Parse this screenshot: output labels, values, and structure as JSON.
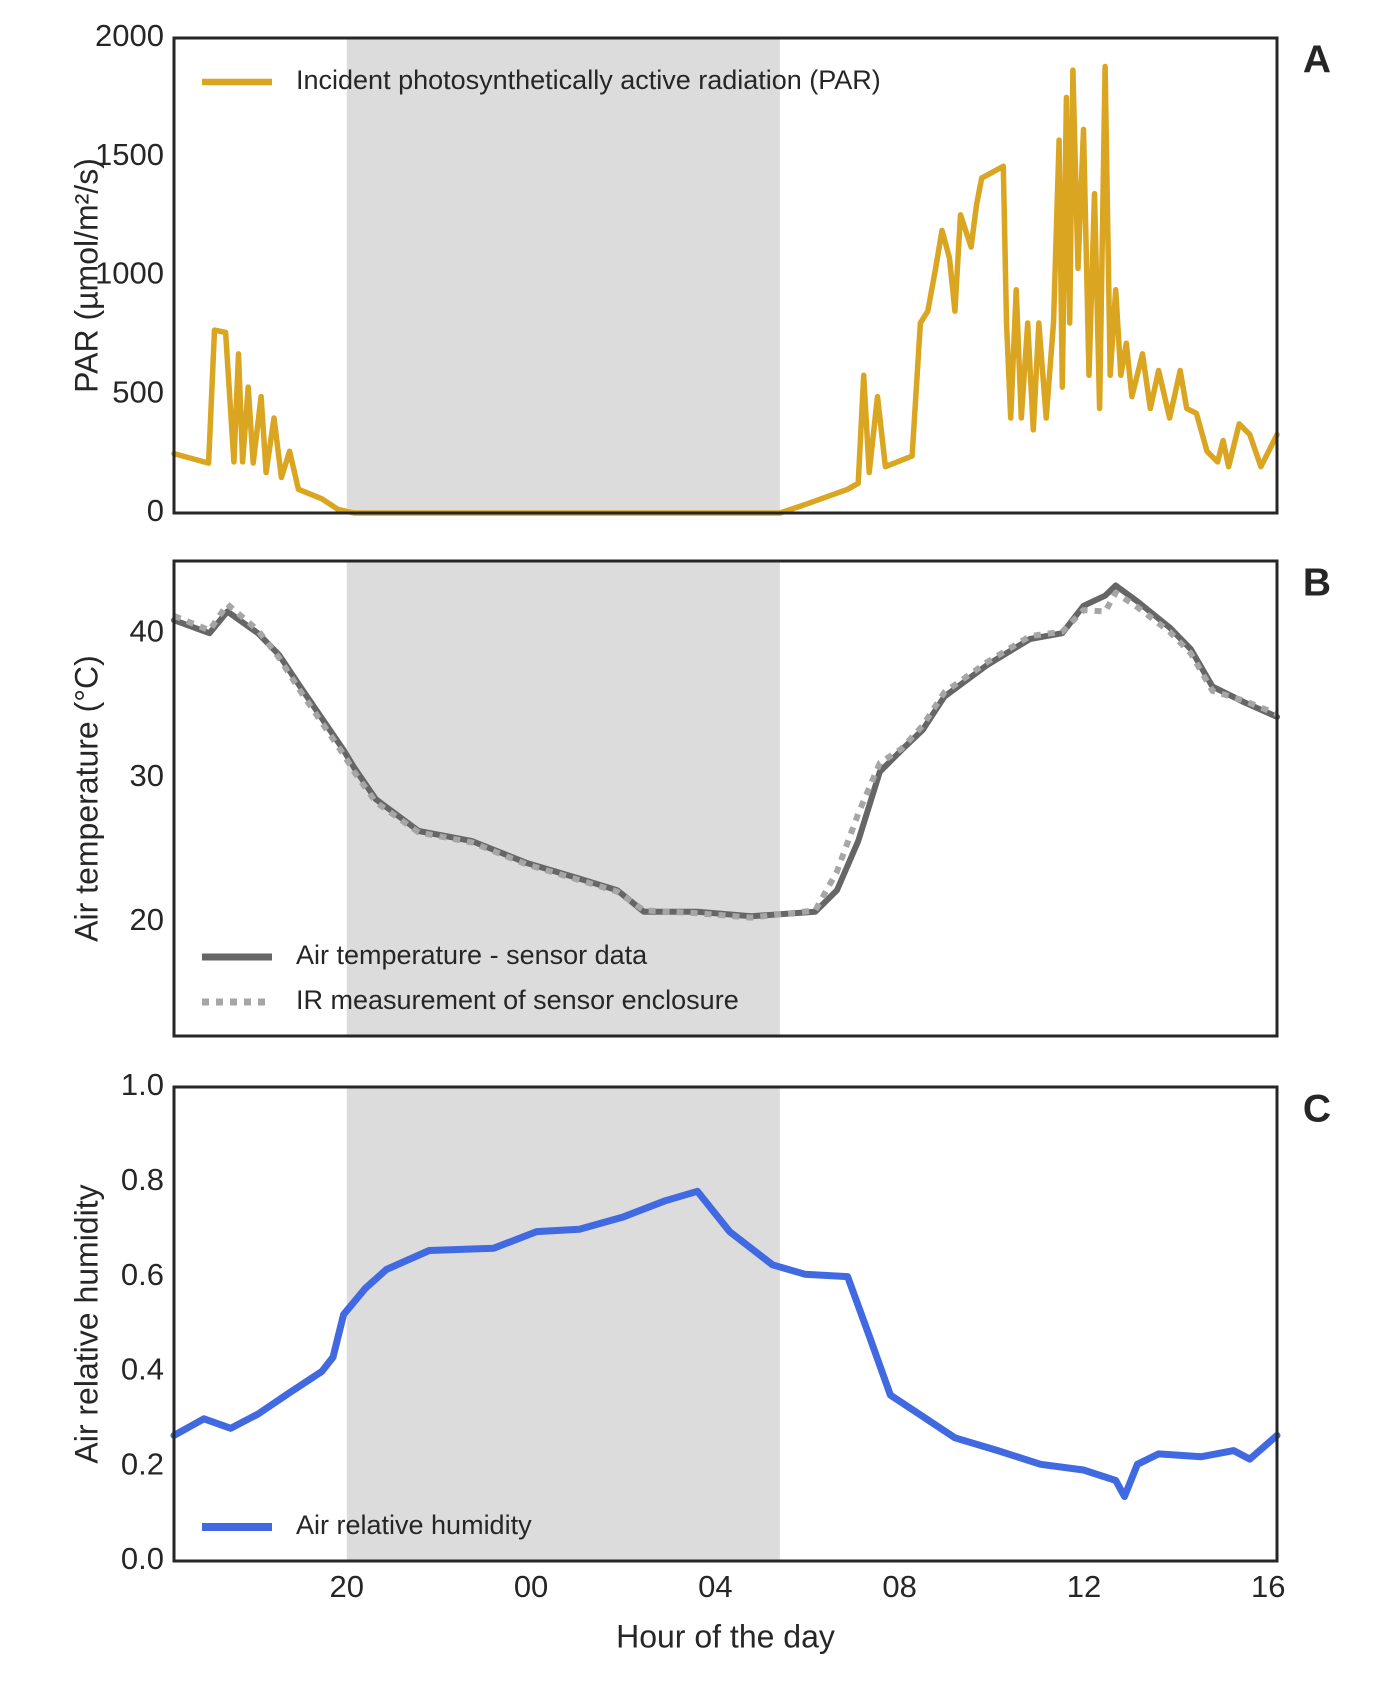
{
  "chart_data": [
    {
      "type": "line",
      "panel_label": "A",
      "ylabel": "PAR (µmol/m²/s)",
      "xlim": [
        16.25,
        40.19
      ],
      "ylim": [
        0,
        2000
      ],
      "yticks": [
        0,
        500,
        1000,
        1500,
        2000
      ],
      "shaded_span": [
        20,
        29.4
      ],
      "shade_color": "#dcdcdc",
      "legend": "upper left",
      "x": [
        16.25,
        17.0,
        17.13,
        17.37,
        17.55,
        17.65,
        17.74,
        17.86,
        17.97,
        18.14,
        18.25,
        18.42,
        18.58,
        18.76,
        18.95,
        19.46,
        19.81,
        20.16,
        29.4,
        29.94,
        30.87,
        31.1,
        31.22,
        31.34,
        31.52,
        31.69,
        32.27,
        32.45,
        32.61,
        32.78,
        32.92,
        33.08,
        33.2,
        33.32,
        33.55,
        33.67,
        33.78,
        34.25,
        34.32,
        34.41,
        34.53,
        34.64,
        34.78,
        34.9,
        35.02,
        35.18,
        35.34,
        35.46,
        35.53,
        35.62,
        35.69,
        35.76,
        35.87,
        35.99,
        36.11,
        36.23,
        36.34,
        36.46,
        36.57,
        36.69,
        36.8,
        36.92,
        37.04,
        37.27,
        37.44,
        37.62,
        37.86,
        38.09,
        38.23,
        38.44,
        38.67,
        38.9,
        39.02,
        39.14,
        39.37,
        39.6,
        39.84,
        40.19
      ],
      "series": [
        {
          "name": "Incident photosynthetically active radiation (PAR)",
          "color": "#daa520",
          "linestyle": "solid",
          "values": [
            250,
            210,
            770,
            760,
            215,
            670,
            215,
            530,
            210,
            490,
            170,
            400,
            150,
            260,
            100,
            60,
            15,
            0,
            0,
            35,
            100,
            125,
            580,
            170,
            490,
            195,
            240,
            800,
            850,
            1030,
            1190,
            1075,
            850,
            1255,
            1120,
            1300,
            1410,
            1460,
            800,
            400,
            940,
            400,
            800,
            350,
            800,
            400,
            800,
            1570,
            530,
            1750,
            800,
            1865,
            1030,
            1615,
            580,
            1345,
            440,
            1880,
            580,
            940,
            580,
            715,
            490,
            670,
            440,
            600,
            400,
            600,
            440,
            420,
            260,
            215,
            305,
            195,
            375,
            330,
            195,
            330
          ]
        }
      ]
    },
    {
      "type": "line",
      "panel_label": "B",
      "ylabel": "Air temperature (°C)",
      "xlim": [
        16.25,
        40.19
      ],
      "ylim": [
        12.1,
        45
      ],
      "yticks": [
        20,
        30,
        40
      ],
      "shaded_span": [
        20,
        29.4
      ],
      "shade_color": "#dcdcdc",
      "legend": "lower left",
      "x": [
        16.25,
        17.02,
        17.41,
        18.07,
        18.53,
        18.99,
        19.93,
        20.16,
        20.63,
        21.56,
        22.72,
        23.89,
        25.05,
        25.87,
        26.45,
        27.61,
        28.78,
        30.17,
        30.64,
        31.1,
        31.57,
        32.04,
        32.5,
        32.97,
        33.9,
        34.83,
        35.53,
        35.99,
        36.46,
        36.69,
        37.16,
        37.86,
        38.32,
        38.79,
        39.49,
        40.19
      ],
      "series": [
        {
          "name": "Air temperature - sensor data",
          "color": "#666666",
          "linestyle": "solid",
          "values": [
            40.9,
            40,
            41.5,
            40,
            38.5,
            36.3,
            31.9,
            30.7,
            28.5,
            26.3,
            25.6,
            24.1,
            23,
            22.2,
            20.7,
            20.7,
            20.4,
            20.7,
            22.2,
            25.6,
            30.4,
            31.9,
            33.3,
            35.6,
            37.8,
            39.6,
            40,
            41.9,
            42.6,
            43.3,
            42.2,
            40.4,
            38.9,
            36.3,
            35.2,
            34.2
          ]
        },
        {
          "name": "IR measurement of sensor enclosure",
          "color": "#a6a6a6",
          "linestyle": "dotted",
          "values": [
            41.2,
            40.2,
            42,
            40.2,
            38.3,
            36,
            31.6,
            30.4,
            28.3,
            26.2,
            25.5,
            24,
            22.9,
            22.1,
            20.8,
            20.6,
            20.3,
            20.8,
            23.5,
            27.5,
            31,
            32,
            33.6,
            35.9,
            38,
            39.8,
            40.1,
            41.6,
            41.5,
            42.8,
            41.8,
            40.1,
            38.6,
            36,
            35.3,
            34.4
          ]
        }
      ]
    },
    {
      "type": "line",
      "panel_label": "C",
      "ylabel": "Air relative humidity",
      "xlabel": "Hour of the day",
      "xlim": [
        16.25,
        40.19
      ],
      "ylim": [
        0,
        1
      ],
      "yticks": [
        {
          "value": 0,
          "label": "0.0"
        },
        0.2,
        0.4,
        0.6,
        0.8,
        {
          "value": 1,
          "label": "1.0"
        }
      ],
      "xticks": [
        20,
        {
          "value": 24,
          "label": "00"
        },
        {
          "value": 28,
          "label": "04"
        },
        {
          "value": 32,
          "label": "08"
        },
        {
          "value": 36,
          "label": "12"
        },
        {
          "value": 40,
          "label": "16"
        }
      ],
      "shaded_span": [
        20,
        29.4
      ],
      "shade_color": "#dcdcdc",
      "legend": "lower left",
      "x": [
        16.25,
        16.9,
        17.48,
        18.07,
        18.76,
        19.46,
        19.7,
        19.93,
        20.4,
        20.86,
        21.79,
        23.19,
        24.12,
        25.05,
        25.98,
        26.91,
        27.61,
        28.31,
        29.24,
        29.94,
        30.87,
        31.34,
        31.8,
        32.5,
        33.2,
        34.13,
        35.06,
        35.99,
        36.69,
        36.88,
        37.16,
        37.62,
        38.55,
        39.25,
        39.6,
        40.19
      ],
      "series": [
        {
          "name": "Air relative humidity",
          "color": "#4169e1",
          "linestyle": "solid",
          "values": [
            0.265,
            0.3,
            0.28,
            0.31,
            0.355,
            0.4,
            0.43,
            0.52,
            0.575,
            0.615,
            0.655,
            0.66,
            0.695,
            0.7,
            0.725,
            0.76,
            0.78,
            0.695,
            0.625,
            0.605,
            0.6,
            0.475,
            0.35,
            0.305,
            0.26,
            0.233,
            0.204,
            0.192,
            0.17,
            0.136,
            0.204,
            0.226,
            0.22,
            0.233,
            0.215,
            0.265
          ]
        }
      ]
    }
  ]
}
